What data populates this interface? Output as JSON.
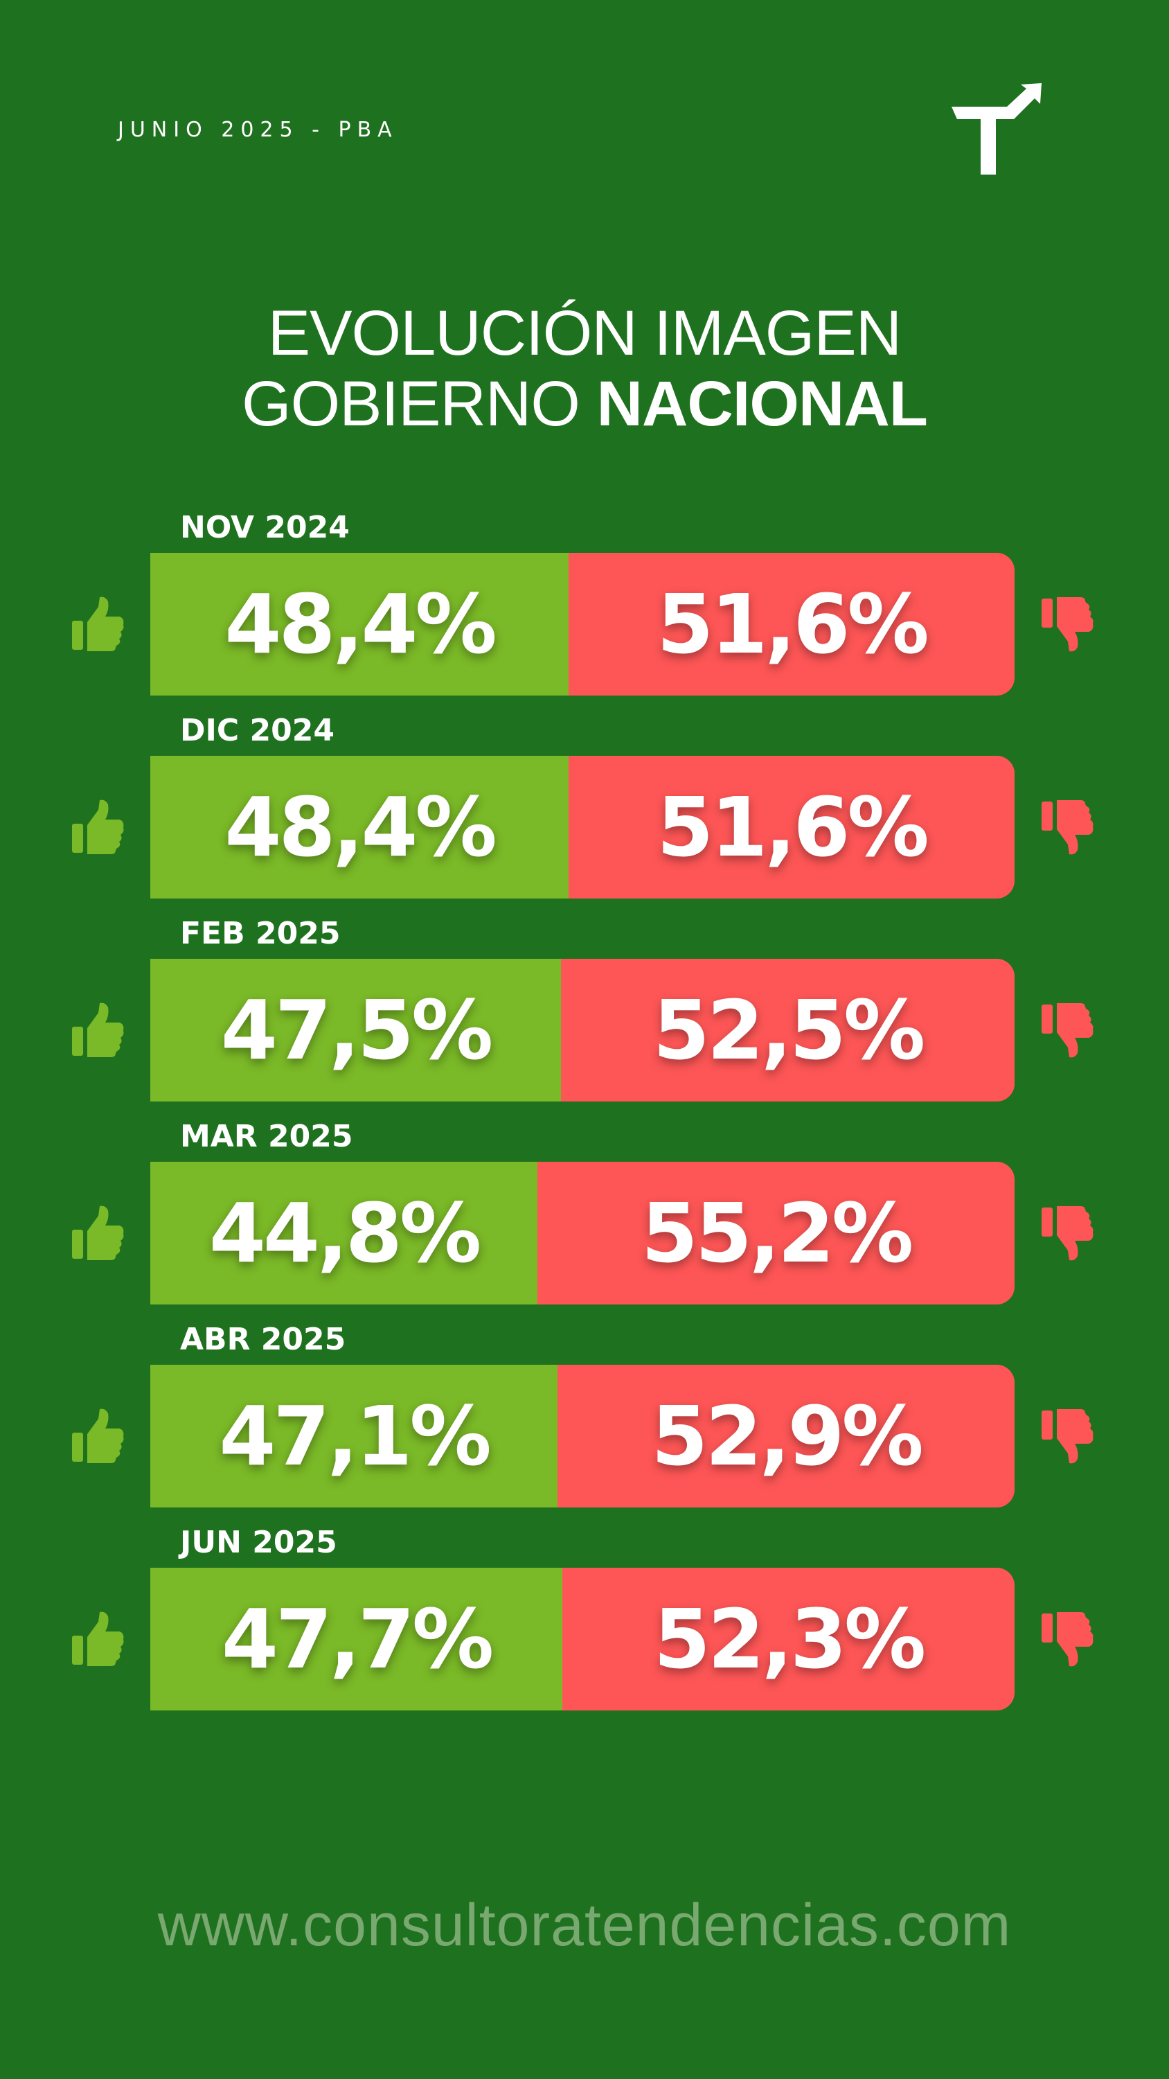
{
  "header": {
    "date_label": "JUNIO 2025 - PBA",
    "logo_icon": "arrow-turn-up-right-icon"
  },
  "title": {
    "line1": "EVOLUCIÓN IMAGEN",
    "line2_regular": "GOBIERNO ",
    "line2_bold": "NACIONAL"
  },
  "colors": {
    "background": "#1e711e",
    "positive": "#7ab927",
    "negative": "#fe5656",
    "website": "#79a870"
  },
  "icons": {
    "positive": "thumbs-up-icon",
    "negative": "thumbs-down-icon"
  },
  "chart_data": {
    "type": "bar",
    "orientation": "horizontal",
    "stacked": true,
    "title": "EVOLUCIÓN IMAGEN GOBIERNO NACIONAL",
    "categories": [
      "NOV 2024",
      "DIC 2024",
      "FEB 2025",
      "MAR 2025",
      "ABR 2025",
      "JUN 2025"
    ],
    "series": [
      {
        "values": [
          48.4,
          48.4,
          47.5,
          44.8,
          47.1,
          47.7
        ],
        "labels": [
          "48,4%",
          "48,4%",
          "47,5%",
          "44,8%",
          "47,1%",
          "47,7%"
        ]
      },
      {
        "values": [
          51.6,
          51.6,
          52.5,
          55.2,
          52.9,
          52.3
        ],
        "labels": [
          "51,6%",
          "51,6%",
          "52,5%",
          "55,2%",
          "52,9%",
          "52,3%"
        ]
      }
    ],
    "xlim": [
      0,
      100
    ],
    "grid": false
  },
  "footer": {
    "website": "www.consultoratendencias.com"
  }
}
